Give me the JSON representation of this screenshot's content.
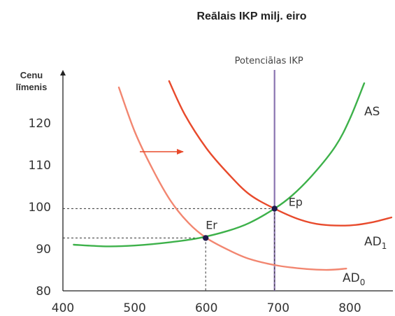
{
  "chart_data": {
    "type": "line",
    "title": "Reālais IKP milj. eiro",
    "ylabel_line1": "Cenu",
    "ylabel_line2": "līmenis",
    "xlim": [
      400,
      860
    ],
    "ylim": [
      80,
      132
    ],
    "x_ticks": [
      400,
      500,
      600,
      700,
      800
    ],
    "y_ticks": [
      80,
      90,
      100,
      110,
      120
    ],
    "potential_gdp": {
      "label": "Potenciālas IKP",
      "x": 695,
      "color": "#8a74b0"
    },
    "series": [
      {
        "name": "AS",
        "label_main": "AS",
        "label_sub": "",
        "color": "#3db14a",
        "points": [
          [
            415,
            91
          ],
          [
            460,
            90.6
          ],
          [
            500,
            90.8
          ],
          [
            550,
            91.6
          ],
          [
            590,
            92.6
          ],
          [
            630,
            94.3
          ],
          [
            660,
            96.2
          ],
          [
            695,
            99.6
          ],
          [
            720,
            102.8
          ],
          [
            750,
            108
          ],
          [
            780,
            114.5
          ],
          [
            800,
            121
          ],
          [
            820,
            129.5
          ]
        ]
      },
      {
        "name": "AD1",
        "label_main": "AD",
        "label_sub": "1",
        "color": "#e84a2c",
        "points": [
          [
            548,
            130
          ],
          [
            570,
            122
          ],
          [
            600,
            114
          ],
          [
            630,
            108
          ],
          [
            660,
            103
          ],
          [
            695,
            99.6
          ],
          [
            730,
            97
          ],
          [
            760,
            95.8
          ],
          [
            800,
            95.6
          ],
          [
            830,
            96.3
          ],
          [
            858,
            97.5
          ]
        ]
      },
      {
        "name": "AD0",
        "label_main": "AD",
        "label_sub": "0",
        "color": "#f28670",
        "points": [
          [
            478,
            128.5
          ],
          [
            500,
            118
          ],
          [
            525,
            109
          ],
          [
            550,
            101.5
          ],
          [
            575,
            96.2
          ],
          [
            600,
            92.6
          ],
          [
            630,
            89.8
          ],
          [
            660,
            87.6
          ],
          [
            700,
            86
          ],
          [
            740,
            85.2
          ],
          [
            770,
            85
          ],
          [
            795,
            85.3
          ]
        ]
      }
    ],
    "points": [
      {
        "name": "Ep",
        "x": 695,
        "y": 99.6
      },
      {
        "name": "Er",
        "x": 599,
        "y": 92.6
      }
    ],
    "grid": false,
    "legend": "none"
  }
}
